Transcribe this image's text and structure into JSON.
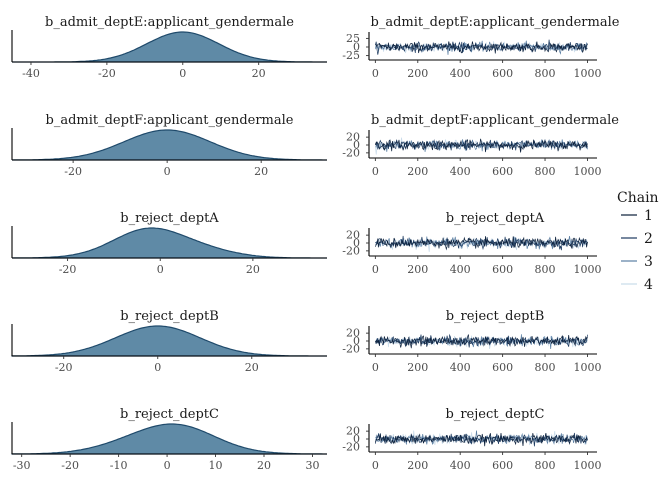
{
  "chart_data": [
    {
      "type": "area",
      "title": "b_admit_deptE:applicant_gendermale",
      "x_ticks": [
        -40,
        -20,
        0,
        20
      ],
      "xlim": [
        -45,
        38
      ],
      "mean": 0,
      "sd": 9.5,
      "skew": 0
    },
    {
      "type": "line",
      "title": "b_admit_deptE:applicant_gendermale",
      "x_ticks": [
        0,
        200,
        400,
        600,
        800,
        1000
      ],
      "xlim": [
        -30,
        1045
      ],
      "y_ticks": [
        25,
        0,
        -25
      ],
      "ylim": [
        -32,
        32
      ],
      "amp": 12
    },
    {
      "type": "area",
      "title": "b_admit_deptF:applicant_gendermale",
      "x_ticks": [
        -20,
        0,
        20
      ],
      "xlim": [
        -33,
        34
      ],
      "mean": 0,
      "sd": 9.2,
      "skew": 0
    },
    {
      "type": "line",
      "title": "b_admit_deptF:applicant_gendermale",
      "x_ticks": [
        0,
        200,
        400,
        600,
        800,
        1000
      ],
      "xlim": [
        -30,
        1045
      ],
      "y_ticks": [
        20,
        0,
        -20
      ],
      "ylim": [
        -28,
        28
      ],
      "amp": 11
    },
    {
      "type": "area",
      "title": "b_reject_deptA",
      "x_ticks": [
        -20,
        0,
        20
      ],
      "xlim": [
        -32,
        36
      ],
      "mean": 0,
      "sd": 9.0,
      "skew": -0.4
    },
    {
      "type": "line",
      "title": "b_reject_deptA",
      "x_ticks": [
        0,
        200,
        400,
        600,
        800,
        1000
      ],
      "xlim": [
        -30,
        1045
      ],
      "y_ticks": [
        20,
        0,
        -20
      ],
      "ylim": [
        -28,
        28
      ],
      "amp": 11
    },
    {
      "type": "area",
      "title": "b_reject_deptB",
      "x_ticks": [
        -20,
        0,
        20
      ],
      "xlim": [
        -31,
        36
      ],
      "mean": 0,
      "sd": 9.0,
      "skew": 0
    },
    {
      "type": "line",
      "title": "b_reject_deptB",
      "x_ticks": [
        0,
        200,
        400,
        600,
        800,
        1000
      ],
      "xlim": [
        -30,
        1045
      ],
      "y_ticks": [
        20,
        0,
        -20
      ],
      "ylim": [
        -28,
        28
      ],
      "amp": 11
    },
    {
      "type": "area",
      "title": "b_reject_deptC",
      "x_ticks": [
        -30,
        -20,
        -10,
        0,
        10,
        20,
        30
      ],
      "xlim": [
        -32,
        33
      ],
      "mean": 0,
      "sd": 9.0,
      "skew": 0.2
    },
    {
      "type": "line",
      "title": "b_reject_deptC",
      "x_ticks": [
        0,
        200,
        400,
        600,
        800,
        1000
      ],
      "xlim": [
        -30,
        1045
      ],
      "y_ticks": [
        20,
        0,
        -20
      ],
      "ylim": [
        -28,
        28
      ],
      "amp": 11
    }
  ],
  "legend": {
    "title": "Chain",
    "items": [
      {
        "label": "1",
        "color": "#0b1f3a"
      },
      {
        "label": "2",
        "color": "#1d3a5f"
      },
      {
        "label": "3",
        "color": "#5b7fa3"
      },
      {
        "label": "4",
        "color": "#c9dbea"
      }
    ]
  },
  "colors": {
    "density_fill": "#5f8aa6",
    "density_line": "#1f4a6b",
    "axis": "#000000"
  }
}
